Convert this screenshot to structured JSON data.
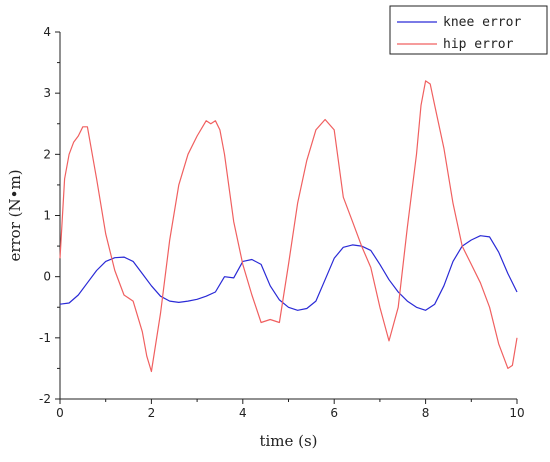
{
  "chart_data": {
    "type": "line",
    "title": "",
    "xlabel": "time (s)",
    "ylabel": "error (N•m)",
    "xlim": [
      0,
      10
    ],
    "ylim": [
      -2,
      4
    ],
    "xticks": [
      0,
      2,
      4,
      6,
      8,
      10
    ],
    "yticks": [
      -2,
      -1,
      0,
      1,
      2,
      3,
      4
    ],
    "grid": false,
    "legend": "top-right",
    "series": [
      {
        "name": "knee error",
        "color": "#2a2ad6",
        "x": [
          0,
          0.2,
          0.4,
          0.6,
          0.8,
          1.0,
          1.2,
          1.4,
          1.6,
          1.8,
          2.0,
          2.2,
          2.4,
          2.6,
          2.8,
          3.0,
          3.2,
          3.4,
          3.6,
          3.8,
          4.0,
          4.2,
          4.4,
          4.6,
          4.8,
          5.0,
          5.2,
          5.4,
          5.6,
          5.8,
          6.0,
          6.2,
          6.4,
          6.6,
          6.8,
          7.0,
          7.2,
          7.4,
          7.6,
          7.8,
          8.0,
          8.2,
          8.4,
          8.6,
          8.8,
          9.0,
          9.2,
          9.4,
          9.6,
          9.8,
          10.0
        ],
        "y": [
          -0.45,
          -0.43,
          -0.3,
          -0.1,
          0.1,
          0.25,
          0.31,
          0.32,
          0.25,
          0.05,
          -0.15,
          -0.32,
          -0.4,
          -0.42,
          -0.4,
          -0.37,
          -0.32,
          -0.25,
          0.0,
          -0.02,
          0.25,
          0.28,
          0.2,
          -0.15,
          -0.38,
          -0.5,
          -0.55,
          -0.52,
          -0.4,
          -0.05,
          0.3,
          0.48,
          0.52,
          0.5,
          0.43,
          0.2,
          -0.05,
          -0.25,
          -0.4,
          -0.5,
          -0.55,
          -0.45,
          -0.15,
          0.25,
          0.5,
          0.6,
          0.67,
          0.65,
          0.4,
          0.05,
          -0.25
        ]
      },
      {
        "name": "hip error",
        "color": "#f06060",
        "x": [
          0,
          0.1,
          0.2,
          0.3,
          0.4,
          0.5,
          0.6,
          0.8,
          1.0,
          1.2,
          1.4,
          1.6,
          1.8,
          1.9,
          2.0,
          2.2,
          2.4,
          2.6,
          2.8,
          3.0,
          3.2,
          3.3,
          3.4,
          3.5,
          3.6,
          3.8,
          4.0,
          4.2,
          4.4,
          4.6,
          4.8,
          5.0,
          5.2,
          5.4,
          5.6,
          5.8,
          6.0,
          6.2,
          6.4,
          6.6,
          6.8,
          7.0,
          7.2,
          7.4,
          7.6,
          7.8,
          7.9,
          8.0,
          8.1,
          8.2,
          8.4,
          8.6,
          8.8,
          9.0,
          9.2,
          9.4,
          9.6,
          9.8,
          9.9,
          10.0
        ],
        "y": [
          0.3,
          1.6,
          2.0,
          2.2,
          2.3,
          2.45,
          2.45,
          1.6,
          0.7,
          0.1,
          -0.3,
          -0.4,
          -0.9,
          -1.3,
          -1.55,
          -0.6,
          0.6,
          1.5,
          2.0,
          2.3,
          2.55,
          2.5,
          2.55,
          2.4,
          2.0,
          0.9,
          0.2,
          -0.3,
          -0.75,
          -0.7,
          -0.75,
          0.2,
          1.2,
          1.9,
          2.4,
          2.57,
          2.4,
          1.3,
          0.9,
          0.5,
          0.15,
          -0.5,
          -1.05,
          -0.5,
          0.8,
          2.0,
          2.8,
          3.2,
          3.15,
          2.8,
          2.1,
          1.2,
          0.5,
          0.2,
          -0.1,
          -0.5,
          -1.1,
          -1.5,
          -1.45,
          -1.0
        ]
      }
    ]
  }
}
